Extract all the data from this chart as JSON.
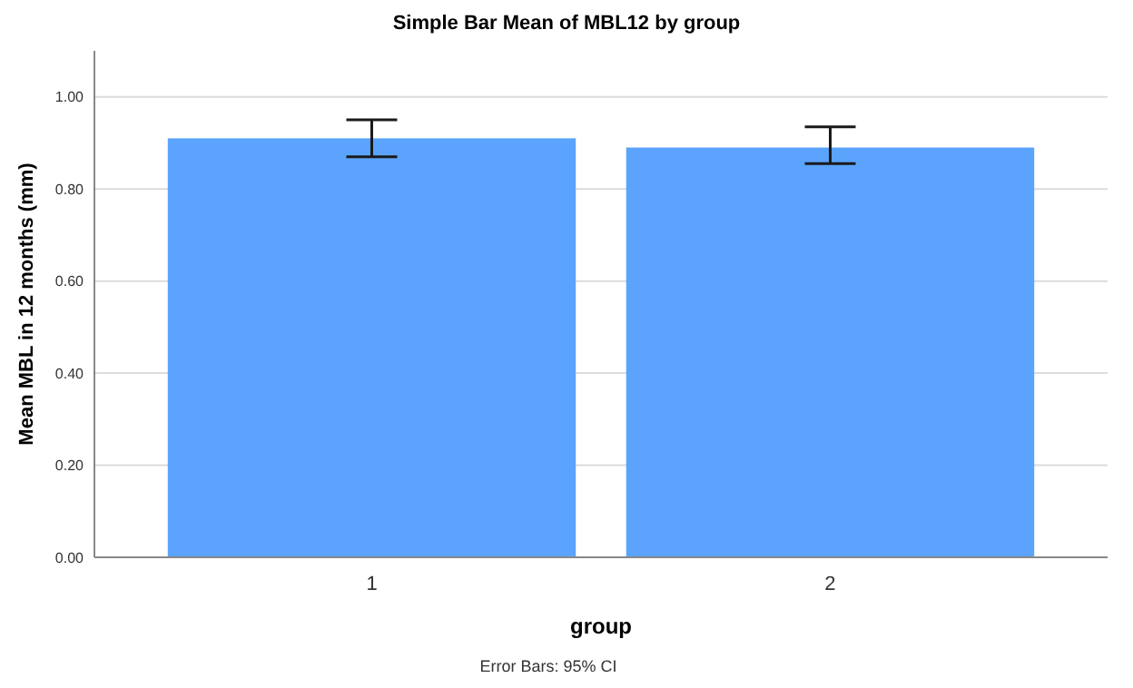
{
  "chart_data": {
    "type": "bar",
    "title": "Simple Bar Mean of MBL12 by group",
    "xlabel": "group",
    "ylabel": "Mean MBL in 12 months (mm)",
    "categories": [
      "1",
      "2"
    ],
    "values": [
      0.91,
      0.89
    ],
    "color": "#5ba3fc",
    "errors": [
      [
        0.87,
        0.95
      ],
      [
        0.855,
        0.935
      ]
    ],
    "ylim": [
      0,
      1.1
    ],
    "yticks": [
      {
        "value": 0,
        "label": "0.00"
      },
      {
        "value": 0.2,
        "label": "0.20"
      },
      {
        "value": 0.4,
        "label": "0.40"
      },
      {
        "value": 0.6,
        "label": "0.60"
      },
      {
        "value": 0.8,
        "label": "0.80"
      },
      {
        "value": 1,
        "label": "1.00"
      }
    ],
    "grid": "y",
    "annotations": [
      "Error Bars: 95% CI"
    ]
  }
}
